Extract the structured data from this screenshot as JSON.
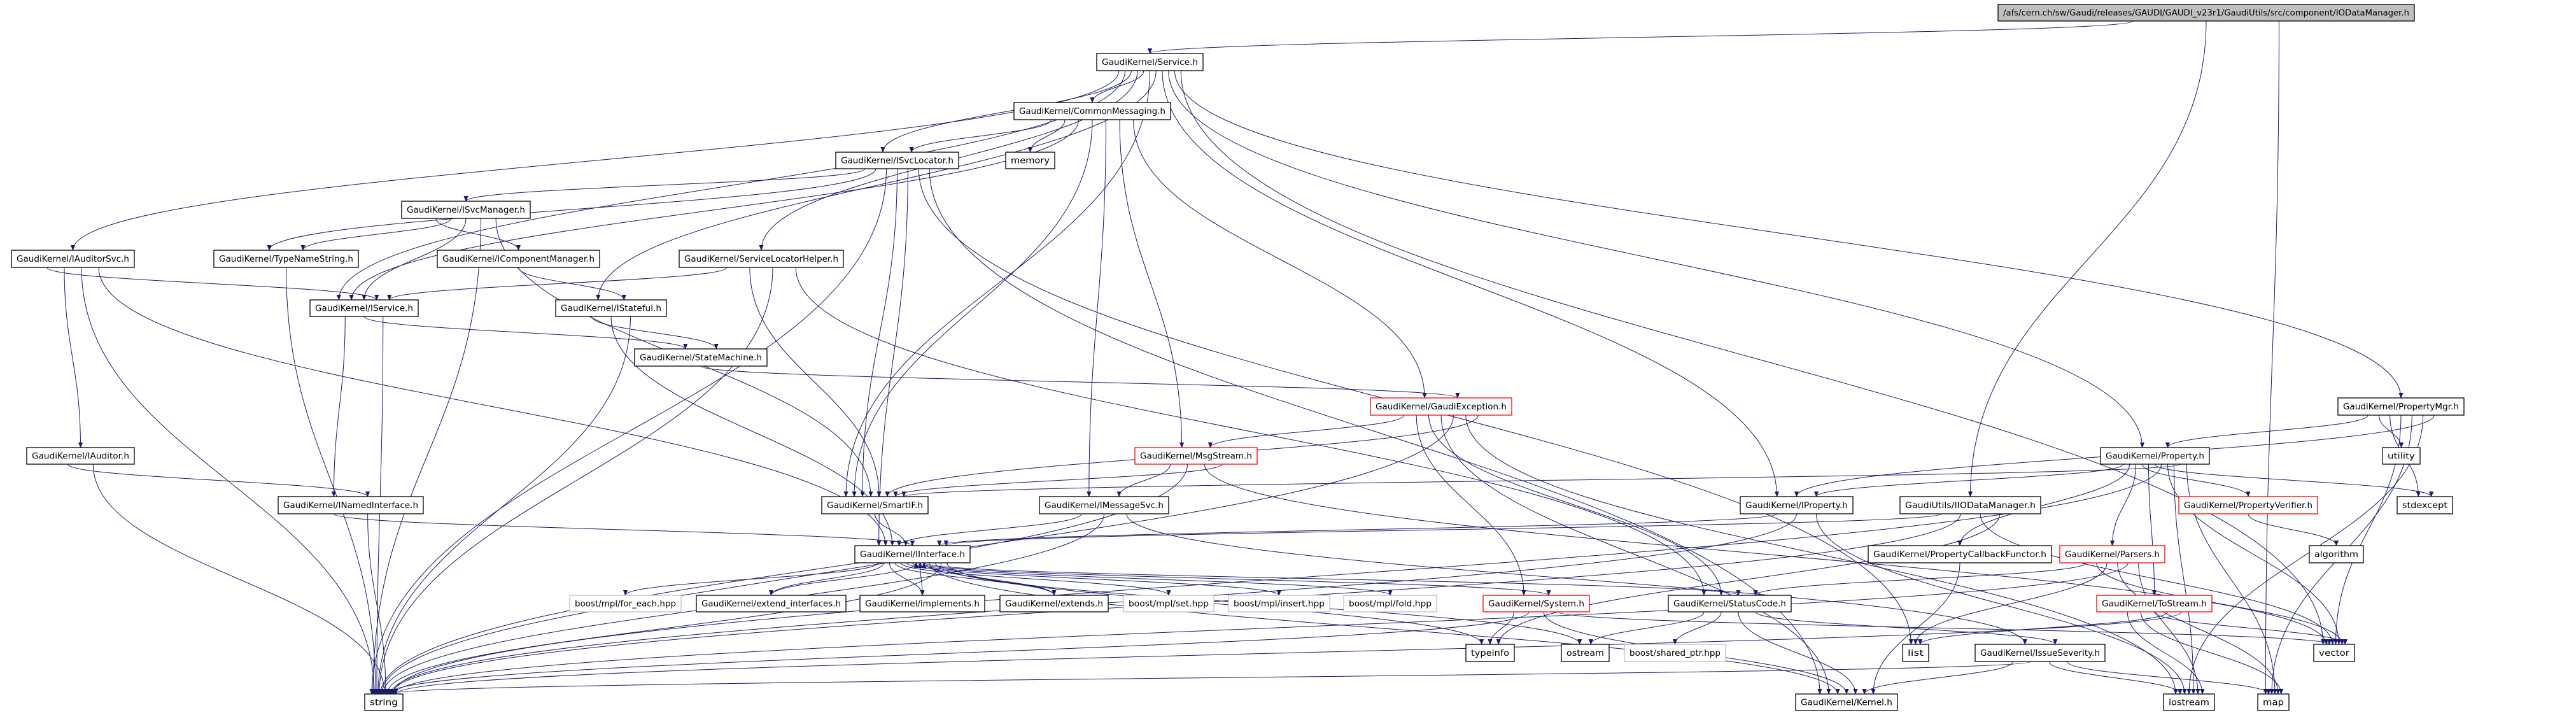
{
  "graph": {
    "edge_color": "#191970",
    "styles": {
      "root": {
        "fill": "#bfbfbf",
        "stroke": "#000000"
      },
      "normal": {
        "fill": "#ffffff",
        "stroke": "#000000"
      },
      "truncated": {
        "fill": "#ffffff",
        "stroke": "#ff0000"
      },
      "external": {
        "fill": "#ffffff",
        "stroke": "#bfbfbf"
      }
    },
    "nodes": [
      {
        "id": "root",
        "label": "/afs/cern.ch/sw/Gaudi/releases/GAUDI/GAUDI_v23r1/GaudiUtils/src/component/IODataManager.h",
        "style": "root"
      },
      {
        "id": "service",
        "label": "GaudiKernel/Service.h",
        "style": "normal"
      },
      {
        "id": "commonmessaging",
        "label": "GaudiKernel/CommonMessaging.h",
        "style": "normal"
      },
      {
        "id": "isvclocator",
        "label": "GaudiKernel/ISvcLocator.h",
        "style": "normal"
      },
      {
        "id": "memory",
        "label": "memory",
        "style": "normal"
      },
      {
        "id": "isvcmanager",
        "label": "GaudiKernel/ISvcManager.h",
        "style": "normal"
      },
      {
        "id": "iauditorsvc",
        "label": "GaudiKernel/IAuditorSvc.h",
        "style": "normal"
      },
      {
        "id": "typenamestring",
        "label": "GaudiKernel/TypeNameString.h",
        "style": "normal"
      },
      {
        "id": "icomponentmanager",
        "label": "GaudiKernel/IComponentManager.h",
        "style": "normal"
      },
      {
        "id": "servicelocatorhelper",
        "label": "GaudiKernel/ServiceLocatorHelper.h",
        "style": "normal"
      },
      {
        "id": "iservice",
        "label": "GaudiKernel/IService.h",
        "style": "normal"
      },
      {
        "id": "istateful",
        "label": "GaudiKernel/IStateful.h",
        "style": "normal"
      },
      {
        "id": "statemachine",
        "label": "GaudiKernel/StateMachine.h",
        "style": "normal"
      },
      {
        "id": "gaudiexception",
        "label": "GaudiKernel/GaudiException.h",
        "style": "truncated"
      },
      {
        "id": "propertymgr",
        "label": "GaudiKernel/PropertyMgr.h",
        "style": "normal"
      },
      {
        "id": "iauditor",
        "label": "GaudiKernel/IAuditor.h",
        "style": "normal"
      },
      {
        "id": "msgstream",
        "label": "GaudiKernel/MsgStream.h",
        "style": "truncated"
      },
      {
        "id": "property",
        "label": "GaudiKernel/Property.h",
        "style": "normal"
      },
      {
        "id": "utility",
        "label": "utility",
        "style": "normal"
      },
      {
        "id": "inamedinterface",
        "label": "GaudiKernel/INamedInterface.h",
        "style": "normal"
      },
      {
        "id": "smartif",
        "label": "GaudiKernel/SmartIF.h",
        "style": "normal"
      },
      {
        "id": "imessagesvc",
        "label": "GaudiKernel/IMessageSvc.h",
        "style": "normal"
      },
      {
        "id": "iproperty",
        "label": "GaudiKernel/IProperty.h",
        "style": "normal"
      },
      {
        "id": "iiodatamanager",
        "label": "GaudiUtils/IIODataManager.h",
        "style": "normal"
      },
      {
        "id": "propertyverifier",
        "label": "GaudiKernel/PropertyVerifier.h",
        "style": "truncated"
      },
      {
        "id": "stdexcept",
        "label": "stdexcept",
        "style": "normal"
      },
      {
        "id": "iinterface",
        "label": "GaudiKernel/IInterface.h",
        "style": "normal"
      },
      {
        "id": "propertycallbackfunctor",
        "label": "GaudiKernel/PropertyCallbackFunctor.h",
        "style": "normal"
      },
      {
        "id": "parsers",
        "label": "GaudiKernel/Parsers.h",
        "style": "truncated"
      },
      {
        "id": "algorithm",
        "label": "algorithm",
        "style": "normal"
      },
      {
        "id": "foreach",
        "label": "boost/mpl/for_each.hpp",
        "style": "external"
      },
      {
        "id": "extendinterfaces",
        "label": "GaudiKernel/extend_interfaces.h",
        "style": "normal"
      },
      {
        "id": "implements",
        "label": "GaudiKernel/implements.h",
        "style": "normal"
      },
      {
        "id": "extends",
        "label": "GaudiKernel/extends.h",
        "style": "normal"
      },
      {
        "id": "mplset",
        "label": "boost/mpl/set.hpp",
        "style": "external"
      },
      {
        "id": "mplinsert",
        "label": "boost/mpl/insert.hpp",
        "style": "external"
      },
      {
        "id": "mplfold",
        "label": "boost/mpl/fold.hpp",
        "style": "external"
      },
      {
        "id": "system",
        "label": "GaudiKernel/System.h",
        "style": "truncated"
      },
      {
        "id": "statuscode",
        "label": "GaudiKernel/StatusCode.h",
        "style": "normal"
      },
      {
        "id": "tostream",
        "label": "GaudiKernel/ToStream.h",
        "style": "truncated"
      },
      {
        "id": "typeinfo",
        "label": "typeinfo",
        "style": "normal"
      },
      {
        "id": "ostream",
        "label": "ostream",
        "style": "normal"
      },
      {
        "id": "sharedptr",
        "label": "boost/shared_ptr.hpp",
        "style": "external"
      },
      {
        "id": "list",
        "label": "list",
        "style": "normal"
      },
      {
        "id": "issueseverity",
        "label": "GaudiKernel/IssueSeverity.h",
        "style": "normal"
      },
      {
        "id": "vector",
        "label": "vector",
        "style": "normal"
      },
      {
        "id": "string",
        "label": "string",
        "style": "normal"
      },
      {
        "id": "kernel",
        "label": "GaudiKernel/Kernel.h",
        "style": "normal"
      },
      {
        "id": "iostream",
        "label": "iostream",
        "style": "normal"
      },
      {
        "id": "map",
        "label": "map",
        "style": "normal"
      }
    ],
    "edges": [
      [
        "root",
        "service"
      ],
      [
        "root",
        "iiodatamanager"
      ],
      [
        "root",
        "map"
      ],
      [
        "service",
        "iauditorsvc"
      ],
      [
        "service",
        "iservice"
      ],
      [
        "service",
        "isvclocator"
      ],
      [
        "service",
        "servicelocatorhelper"
      ],
      [
        "service",
        "commonmessaging"
      ],
      [
        "service",
        "smartif"
      ],
      [
        "service",
        "istateful"
      ],
      [
        "service",
        "iproperty"
      ],
      [
        "service",
        "property"
      ],
      [
        "service",
        "propertymgr"
      ],
      [
        "service",
        "vector"
      ],
      [
        "commonmessaging",
        "isvclocator"
      ],
      [
        "commonmessaging",
        "memory"
      ],
      [
        "commonmessaging",
        "iservice"
      ],
      [
        "commonmessaging",
        "smartif"
      ],
      [
        "commonmessaging",
        "imessagesvc"
      ],
      [
        "commonmessaging",
        "msgstream"
      ],
      [
        "commonmessaging",
        "gaudiexception"
      ],
      [
        "isvclocator",
        "isvcmanager"
      ],
      [
        "isvclocator",
        "typenamestring"
      ],
      [
        "isvclocator",
        "string"
      ],
      [
        "isvclocator",
        "smartif"
      ],
      [
        "isvclocator",
        "iinterface"
      ],
      [
        "isvclocator",
        "list"
      ],
      [
        "isvclocator",
        "kernel"
      ],
      [
        "isvcmanager",
        "icomponentmanager"
      ],
      [
        "isvcmanager",
        "typenamestring"
      ],
      [
        "isvcmanager",
        "iservice"
      ],
      [
        "isvcmanager",
        "string"
      ],
      [
        "isvcmanager",
        "smartif"
      ],
      [
        "icomponentmanager",
        "istateful"
      ],
      [
        "iauditorsvc",
        "iservice"
      ],
      [
        "iauditorsvc",
        "iauditor"
      ],
      [
        "iauditorsvc",
        "string"
      ],
      [
        "iauditorsvc",
        "iinterface"
      ],
      [
        "typenamestring",
        "string"
      ],
      [
        "iservice",
        "inamedinterface"
      ],
      [
        "iservice",
        "statemachine"
      ],
      [
        "iservice",
        "string"
      ],
      [
        "istateful",
        "statemachine"
      ],
      [
        "istateful",
        "iinterface"
      ],
      [
        "istateful",
        "string"
      ],
      [
        "servicelocatorhelper",
        "iservice"
      ],
      [
        "servicelocatorhelper",
        "smartif"
      ],
      [
        "servicelocatorhelper",
        "string"
      ],
      [
        "servicelocatorhelper",
        "statuscode"
      ],
      [
        "statemachine",
        "gaudiexception"
      ],
      [
        "gaudiexception",
        "msgstream"
      ],
      [
        "gaudiexception",
        "system"
      ],
      [
        "gaudiexception",
        "statuscode"
      ],
      [
        "gaudiexception",
        "kernel"
      ],
      [
        "gaudiexception",
        "string"
      ],
      [
        "gaudiexception",
        "iostream"
      ],
      [
        "gaudiexception",
        "smartif"
      ],
      [
        "msgstream",
        "imessagesvc"
      ],
      [
        "msgstream",
        "string"
      ],
      [
        "msgstream",
        "vector"
      ],
      [
        "msgstream",
        "smartif"
      ],
      [
        "imessagesvc",
        "iinterface"
      ],
      [
        "imessagesvc",
        "string"
      ],
      [
        "imessagesvc",
        "issueseverity"
      ],
      [
        "smartif",
        "iinterface"
      ],
      [
        "iauditor",
        "inamedinterface"
      ],
      [
        "iauditor",
        "string"
      ],
      [
        "inamedinterface",
        "iinterface"
      ],
      [
        "inamedinterface",
        "string"
      ],
      [
        "iinterface",
        "foreach"
      ],
      [
        "iinterface",
        "extendinterfaces"
      ],
      [
        "iinterface",
        "implements"
      ],
      [
        "iinterface",
        "extends"
      ],
      [
        "iinterface",
        "mplset"
      ],
      [
        "iinterface",
        "mplinsert"
      ],
      [
        "iinterface",
        "mplfold"
      ],
      [
        "iinterface",
        "system"
      ],
      [
        "iinterface",
        "statuscode"
      ],
      [
        "iinterface",
        "kernel"
      ],
      [
        "iinterface",
        "ostream"
      ],
      [
        "iinterface",
        "string"
      ],
      [
        "iinterface",
        "typeinfo"
      ],
      [
        "extendinterfaces",
        "iinterface"
      ],
      [
        "implements",
        "iinterface"
      ],
      [
        "extends",
        "iinterface"
      ],
      [
        "system",
        "typeinfo"
      ],
      [
        "system",
        "string"
      ],
      [
        "system",
        "kernel"
      ],
      [
        "system",
        "vector"
      ],
      [
        "statuscode",
        "ostream"
      ],
      [
        "statuscode",
        "sharedptr"
      ],
      [
        "statuscode",
        "kernel"
      ],
      [
        "statuscode",
        "issueseverity"
      ],
      [
        "issueseverity",
        "kernel"
      ],
      [
        "issueseverity",
        "string"
      ],
      [
        "issueseverity",
        "iostream"
      ],
      [
        "issueseverity",
        "map"
      ],
      [
        "iproperty",
        "iinterface"
      ],
      [
        "iproperty",
        "string"
      ],
      [
        "iproperty",
        "iostream"
      ],
      [
        "iiodatamanager",
        "iinterface"
      ],
      [
        "iiodatamanager",
        "string"
      ],
      [
        "iiodatamanager",
        "vector"
      ],
      [
        "iiodatamanager",
        "typeinfo"
      ],
      [
        "propertymgr",
        "property"
      ],
      [
        "propertymgr",
        "utility"
      ],
      [
        "propertymgr",
        "stdexcept"
      ],
      [
        "propertymgr",
        "vector"
      ],
      [
        "propertymgr",
        "map"
      ],
      [
        "propertymgr",
        "iostream"
      ],
      [
        "propertymgr",
        "iproperty"
      ],
      [
        "property",
        "iproperty"
      ],
      [
        "property",
        "propertycallbackfunctor"
      ],
      [
        "property",
        "parsers"
      ],
      [
        "property",
        "propertyverifier"
      ],
      [
        "property",
        "tostream"
      ],
      [
        "property",
        "stdexcept"
      ],
      [
        "property",
        "string"
      ],
      [
        "property",
        "vector"
      ],
      [
        "property",
        "iostream"
      ],
      [
        "property",
        "smartif"
      ],
      [
        "property",
        "map"
      ],
      [
        "propertyverifier",
        "algorithm"
      ],
      [
        "propertycallbackfunctor",
        "kernel"
      ],
      [
        "parsers",
        "statuscode"
      ],
      [
        "parsers",
        "vector"
      ],
      [
        "parsers",
        "list"
      ],
      [
        "parsers",
        "map"
      ],
      [
        "parsers",
        "string"
      ],
      [
        "parsers",
        "iostream"
      ],
      [
        "tostream",
        "iostream"
      ],
      [
        "tostream",
        "map"
      ],
      [
        "tostream",
        "vector"
      ],
      [
        "tostream",
        "list"
      ],
      [
        "tostream",
        "string"
      ]
    ]
  }
}
